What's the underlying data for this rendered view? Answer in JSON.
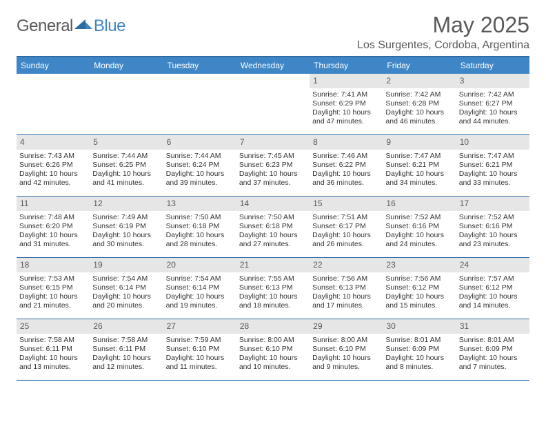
{
  "brand": {
    "general": "General",
    "blue": "Blue"
  },
  "title": {
    "month": "May 2025",
    "location": "Los Surgentes, Cordoba, Argentina"
  },
  "colors": {
    "header_bg": "#3f86c7",
    "header_border": "#2e6ba3",
    "daynum_bg": "#e6e6e6",
    "text": "#333333",
    "muted": "#595959"
  },
  "dow": [
    "Sunday",
    "Monday",
    "Tuesday",
    "Wednesday",
    "Thursday",
    "Friday",
    "Saturday"
  ],
  "weeks": [
    [
      null,
      null,
      null,
      null,
      {
        "n": "1",
        "sr": "7:41 AM",
        "ss": "6:29 PM",
        "dl": "10 hours and 47 minutes."
      },
      {
        "n": "2",
        "sr": "7:42 AM",
        "ss": "6:28 PM",
        "dl": "10 hours and 46 minutes."
      },
      {
        "n": "3",
        "sr": "7:42 AM",
        "ss": "6:27 PM",
        "dl": "10 hours and 44 minutes."
      }
    ],
    [
      {
        "n": "4",
        "sr": "7:43 AM",
        "ss": "6:26 PM",
        "dl": "10 hours and 42 minutes."
      },
      {
        "n": "5",
        "sr": "7:44 AM",
        "ss": "6:25 PM",
        "dl": "10 hours and 41 minutes."
      },
      {
        "n": "6",
        "sr": "7:44 AM",
        "ss": "6:24 PM",
        "dl": "10 hours and 39 minutes."
      },
      {
        "n": "7",
        "sr": "7:45 AM",
        "ss": "6:23 PM",
        "dl": "10 hours and 37 minutes."
      },
      {
        "n": "8",
        "sr": "7:46 AM",
        "ss": "6:22 PM",
        "dl": "10 hours and 36 minutes."
      },
      {
        "n": "9",
        "sr": "7:47 AM",
        "ss": "6:21 PM",
        "dl": "10 hours and 34 minutes."
      },
      {
        "n": "10",
        "sr": "7:47 AM",
        "ss": "6:21 PM",
        "dl": "10 hours and 33 minutes."
      }
    ],
    [
      {
        "n": "11",
        "sr": "7:48 AM",
        "ss": "6:20 PM",
        "dl": "10 hours and 31 minutes."
      },
      {
        "n": "12",
        "sr": "7:49 AM",
        "ss": "6:19 PM",
        "dl": "10 hours and 30 minutes."
      },
      {
        "n": "13",
        "sr": "7:50 AM",
        "ss": "6:18 PM",
        "dl": "10 hours and 28 minutes."
      },
      {
        "n": "14",
        "sr": "7:50 AM",
        "ss": "6:18 PM",
        "dl": "10 hours and 27 minutes."
      },
      {
        "n": "15",
        "sr": "7:51 AM",
        "ss": "6:17 PM",
        "dl": "10 hours and 26 minutes."
      },
      {
        "n": "16",
        "sr": "7:52 AM",
        "ss": "6:16 PM",
        "dl": "10 hours and 24 minutes."
      },
      {
        "n": "17",
        "sr": "7:52 AM",
        "ss": "6:16 PM",
        "dl": "10 hours and 23 minutes."
      }
    ],
    [
      {
        "n": "18",
        "sr": "7:53 AM",
        "ss": "6:15 PM",
        "dl": "10 hours and 21 minutes."
      },
      {
        "n": "19",
        "sr": "7:54 AM",
        "ss": "6:14 PM",
        "dl": "10 hours and 20 minutes."
      },
      {
        "n": "20",
        "sr": "7:54 AM",
        "ss": "6:14 PM",
        "dl": "10 hours and 19 minutes."
      },
      {
        "n": "21",
        "sr": "7:55 AM",
        "ss": "6:13 PM",
        "dl": "10 hours and 18 minutes."
      },
      {
        "n": "22",
        "sr": "7:56 AM",
        "ss": "6:13 PM",
        "dl": "10 hours and 17 minutes."
      },
      {
        "n": "23",
        "sr": "7:56 AM",
        "ss": "6:12 PM",
        "dl": "10 hours and 15 minutes."
      },
      {
        "n": "24",
        "sr": "7:57 AM",
        "ss": "6:12 PM",
        "dl": "10 hours and 14 minutes."
      }
    ],
    [
      {
        "n": "25",
        "sr": "7:58 AM",
        "ss": "6:11 PM",
        "dl": "10 hours and 13 minutes."
      },
      {
        "n": "26",
        "sr": "7:58 AM",
        "ss": "6:11 PM",
        "dl": "10 hours and 12 minutes."
      },
      {
        "n": "27",
        "sr": "7:59 AM",
        "ss": "6:10 PM",
        "dl": "10 hours and 11 minutes."
      },
      {
        "n": "28",
        "sr": "8:00 AM",
        "ss": "6:10 PM",
        "dl": "10 hours and 10 minutes."
      },
      {
        "n": "29",
        "sr": "8:00 AM",
        "ss": "6:10 PM",
        "dl": "10 hours and 9 minutes."
      },
      {
        "n": "30",
        "sr": "8:01 AM",
        "ss": "6:09 PM",
        "dl": "10 hours and 8 minutes."
      },
      {
        "n": "31",
        "sr": "8:01 AM",
        "ss": "6:09 PM",
        "dl": "10 hours and 7 minutes."
      }
    ]
  ],
  "labels": {
    "sunrise": "Sunrise: ",
    "sunset": "Sunset: ",
    "daylight": "Daylight: "
  }
}
